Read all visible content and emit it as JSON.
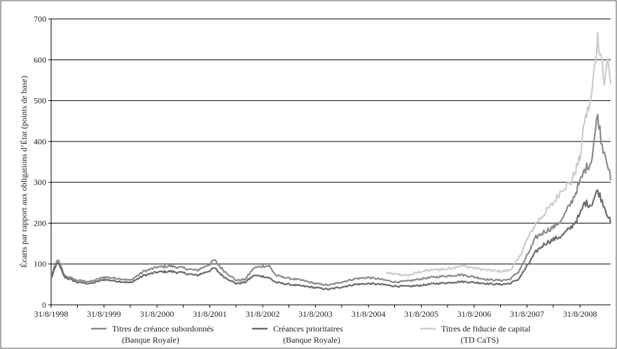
{
  "chart_data": {
    "type": "line",
    "title": "",
    "xlabel": "",
    "ylabel": "Écarts par rapport aux obligations d’État (points de base)",
    "ylim": [
      0,
      700
    ],
    "yticks": [
      "0",
      "100",
      "200",
      "300",
      "400",
      "500",
      "600",
      "700"
    ],
    "xlim": [
      "1998-08-31",
      "2009-03-31"
    ],
    "xticks": [
      {
        "date": "1998-08-31",
        "label": "31/8/1998"
      },
      {
        "date": "1999-08-31",
        "label": "31/8/1999"
      },
      {
        "date": "2000-08-31",
        "label": "31/8/2000"
      },
      {
        "date": "2001-08-31",
        "label": "31/8/2001"
      },
      {
        "date": "2002-08-31",
        "label": "31/8/2002"
      },
      {
        "date": "2003-08-31",
        "label": "31/8/2003"
      },
      {
        "date": "2004-08-31",
        "label": "31/8/2004"
      },
      {
        "date": "2005-08-31",
        "label": "31/8/2005"
      },
      {
        "date": "2006-08-31",
        "label": "31/8/2006"
      },
      {
        "date": "2007-08-31",
        "label": "31/8/2007"
      },
      {
        "date": "2008-08-31",
        "label": "31/8/2008"
      }
    ],
    "grid": "horizontal",
    "legend_position": "bottom",
    "series": [
      {
        "name": "Titres de créance subordonnés",
        "name_sub": "(Banque Royale)",
        "color": "#8a8a8a",
        "points": [
          [
            "1998-08-31",
            70
          ],
          [
            "1998-10-15",
            112
          ],
          [
            "1998-12-01",
            72
          ],
          [
            "1999-03-01",
            60
          ],
          [
            "1999-06-01",
            57
          ],
          [
            "1999-09-01",
            68
          ],
          [
            "1999-12-01",
            65
          ],
          [
            "2000-03-01",
            60
          ],
          [
            "2000-06-01",
            82
          ],
          [
            "2000-09-01",
            92
          ],
          [
            "2000-12-01",
            95
          ],
          [
            "2001-03-01",
            90
          ],
          [
            "2001-06-01",
            84
          ],
          [
            "2001-08-31",
            100
          ],
          [
            "2001-10-01",
            110
          ],
          [
            "2001-12-01",
            85
          ],
          [
            "2002-03-01",
            60
          ],
          [
            "2002-05-01",
            62
          ],
          [
            "2002-07-01",
            90
          ],
          [
            "2002-09-01",
            95
          ],
          [
            "2002-10-15",
            95
          ],
          [
            "2002-12-01",
            72
          ],
          [
            "2003-03-01",
            65
          ],
          [
            "2003-06-01",
            60
          ],
          [
            "2003-09-01",
            52
          ],
          [
            "2003-12-01",
            48
          ],
          [
            "2004-03-01",
            56
          ],
          [
            "2004-06-01",
            64
          ],
          [
            "2004-09-01",
            67
          ],
          [
            "2004-12-01",
            62
          ],
          [
            "2005-03-01",
            56
          ],
          [
            "2005-06-01",
            58
          ],
          [
            "2005-09-01",
            64
          ],
          [
            "2005-12-01",
            68
          ],
          [
            "2006-03-01",
            71
          ],
          [
            "2006-06-01",
            74
          ],
          [
            "2006-09-01",
            68
          ],
          [
            "2006-12-01",
            62
          ],
          [
            "2007-03-01",
            60
          ],
          [
            "2007-05-01",
            62
          ],
          [
            "2007-07-01",
            80
          ],
          [
            "2007-09-01",
            120
          ],
          [
            "2007-11-01",
            165
          ],
          [
            "2008-01-01",
            180
          ],
          [
            "2008-03-01",
            190
          ],
          [
            "2008-05-01",
            210
          ],
          [
            "2008-07-01",
            250
          ],
          [
            "2008-08-31",
            300
          ],
          [
            "2008-10-01",
            330
          ],
          [
            "2008-11-15",
            350
          ],
          [
            "2008-12-31",
            465
          ],
          [
            "2009-01-31",
            390
          ],
          [
            "2009-02-28",
            365
          ],
          [
            "2009-03-31",
            305
          ]
        ]
      },
      {
        "name": "Créances prioritaires",
        "name_sub": "(Banque Royale)",
        "color": "#6a6a6a",
        "points": [
          [
            "1998-08-31",
            65
          ],
          [
            "1998-10-15",
            105
          ],
          [
            "1998-12-01",
            68
          ],
          [
            "1999-03-01",
            55
          ],
          [
            "1999-06-01",
            52
          ],
          [
            "1999-09-01",
            62
          ],
          [
            "1999-12-01",
            58
          ],
          [
            "2000-03-01",
            54
          ],
          [
            "2000-06-01",
            72
          ],
          [
            "2000-09-01",
            80
          ],
          [
            "2000-12-01",
            82
          ],
          [
            "2001-03-01",
            78
          ],
          [
            "2001-06-01",
            72
          ],
          [
            "2001-08-31",
            84
          ],
          [
            "2001-10-01",
            90
          ],
          [
            "2001-12-01",
            70
          ],
          [
            "2002-03-01",
            52
          ],
          [
            "2002-05-01",
            55
          ],
          [
            "2002-07-01",
            72
          ],
          [
            "2002-09-01",
            70
          ],
          [
            "2002-10-15",
            66
          ],
          [
            "2002-12-01",
            55
          ],
          [
            "2003-03-01",
            50
          ],
          [
            "2003-06-01",
            46
          ],
          [
            "2003-09-01",
            42
          ],
          [
            "2003-12-01",
            38
          ],
          [
            "2004-03-01",
            44
          ],
          [
            "2004-06-01",
            50
          ],
          [
            "2004-09-01",
            52
          ],
          [
            "2004-12-01",
            50
          ],
          [
            "2005-03-01",
            46
          ],
          [
            "2005-06-01",
            45
          ],
          [
            "2005-09-01",
            48
          ],
          [
            "2005-12-01",
            52
          ],
          [
            "2006-03-01",
            54
          ],
          [
            "2006-06-01",
            57
          ],
          [
            "2006-09-01",
            55
          ],
          [
            "2006-12-01",
            52
          ],
          [
            "2007-03-01",
            50
          ],
          [
            "2007-05-01",
            52
          ],
          [
            "2007-07-01",
            62
          ],
          [
            "2007-09-01",
            95
          ],
          [
            "2007-11-01",
            130
          ],
          [
            "2008-01-01",
            150
          ],
          [
            "2008-03-01",
            160
          ],
          [
            "2008-05-01",
            170
          ],
          [
            "2008-07-01",
            190
          ],
          [
            "2008-08-31",
            220
          ],
          [
            "2008-10-01",
            250
          ],
          [
            "2008-11-15",
            245
          ],
          [
            "2008-12-31",
            280
          ],
          [
            "2009-01-31",
            255
          ],
          [
            "2009-02-28",
            230
          ],
          [
            "2009-03-31",
            200
          ]
        ]
      },
      {
        "name": "Titres de fiducie de capital",
        "name_sub": "(TD CaTS)",
        "color": "#cccccc",
        "points": [
          [
            "2005-01-01",
            78
          ],
          [
            "2005-03-01",
            75
          ],
          [
            "2005-06-01",
            72
          ],
          [
            "2005-09-01",
            82
          ],
          [
            "2005-12-01",
            86
          ],
          [
            "2006-03-01",
            88
          ],
          [
            "2006-06-01",
            96
          ],
          [
            "2006-09-01",
            90
          ],
          [
            "2006-12-01",
            85
          ],
          [
            "2007-03-01",
            82
          ],
          [
            "2007-05-01",
            84
          ],
          [
            "2007-07-01",
            110
          ],
          [
            "2007-09-01",
            160
          ],
          [
            "2007-11-01",
            200
          ],
          [
            "2008-01-01",
            225
          ],
          [
            "2008-03-01",
            250
          ],
          [
            "2008-05-01",
            285
          ],
          [
            "2008-07-01",
            300
          ],
          [
            "2008-08-31",
            360
          ],
          [
            "2008-10-01",
            450
          ],
          [
            "2008-11-15",
            500
          ],
          [
            "2008-12-31",
            655
          ],
          [
            "2009-01-31",
            600
          ],
          [
            "2009-02-15",
            530
          ],
          [
            "2009-03-10",
            610
          ],
          [
            "2009-03-31",
            540
          ]
        ]
      }
    ]
  }
}
